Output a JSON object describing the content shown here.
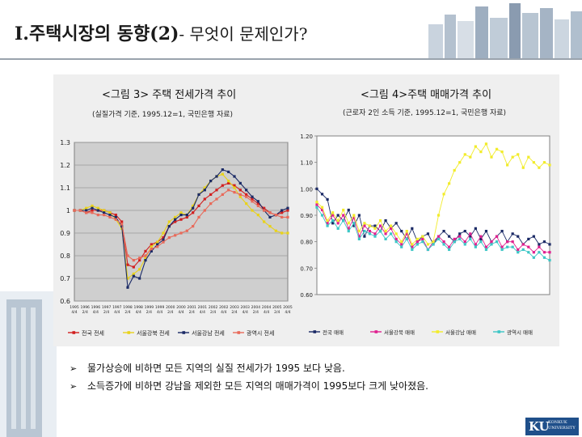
{
  "slide": {
    "title_main": "I.주택시장의 동향(2)",
    "title_rest": "- 무엇이 문제인가?",
    "bullets": [
      "물가상승에 비하면 모든 지역의 실질 전세가가 1995 보다 낮음.",
      "소득증가에 비하면 강남을 제외한 모든 지역의 매매가격이 1995보다 크게 낮아졌음."
    ],
    "logo_text": "KU",
    "logo_sub": "KONKUK UNIVERSITY"
  },
  "chart_data": [
    {
      "type": "line",
      "title": "<그림 3> 주택 전세가격 추이",
      "subtitle": "(실질가격 기준, 1995.12=1, 국민은행 자료)",
      "ylim": [
        0.6,
        1.3
      ],
      "yticks": [
        "1.3",
        "1.2",
        "1.1",
        "1",
        "0.9",
        "0.8",
        "0.7",
        "0.6"
      ],
      "xticks": [
        "1995 4/4",
        "1996 2/4",
        "1996 4/4",
        "1997 2/4",
        "1997 4/4",
        "1998 2/4",
        "1998 4/4",
        "1999 2/4",
        "1999 4/4",
        "2000 2/4",
        "2000 4/4",
        "2001 2/4",
        "2001 4/4",
        "2002 2/4",
        "2002 4/4",
        "2003 2/4",
        "2003 4/4",
        "2004 2/4",
        "2004 4/4",
        "2005 2/4",
        "2005 4/4"
      ],
      "grid": true,
      "legend_position": "bottom",
      "series": [
        {
          "name": "전국 전세",
          "color": "#d11f1f",
          "values": [
            1.0,
            1.0,
            0.99,
            1.0,
            1.0,
            1.0,
            0.99,
            0.98,
            0.95,
            0.76,
            0.75,
            0.78,
            0.82,
            0.85,
            0.86,
            0.88,
            0.93,
            0.95,
            0.96,
            0.97,
            0.99,
            1.02,
            1.05,
            1.07,
            1.09,
            1.11,
            1.12,
            1.11,
            1.09,
            1.07,
            1.05,
            1.03,
            1.01,
            0.99,
            0.98,
            0.99,
            1.0
          ]
        },
        {
          "name": "서울강북 전세",
          "color": "#e8d21a",
          "values": [
            1.0,
            1.0,
            1.01,
            1.02,
            1.01,
            1.0,
            0.99,
            0.96,
            0.92,
            0.7,
            0.72,
            0.74,
            0.79,
            0.84,
            0.86,
            0.9,
            0.95,
            0.97,
            0.99,
            0.98,
            1.02,
            1.07,
            1.1,
            1.13,
            1.15,
            1.16,
            1.13,
            1.1,
            1.06,
            1.03,
            1.0,
            0.98,
            0.95,
            0.93,
            0.91,
            0.9,
            0.9
          ]
        },
        {
          "name": "서울강남 전세",
          "color": "#1b2a66",
          "values": [
            1.0,
            1.0,
            1.0,
            1.01,
            1.0,
            0.99,
            0.98,
            0.97,
            0.93,
            0.66,
            0.71,
            0.7,
            0.78,
            0.82,
            0.85,
            0.87,
            0.93,
            0.96,
            0.98,
            0.98,
            1.01,
            1.07,
            1.09,
            1.13,
            1.15,
            1.18,
            1.17,
            1.15,
            1.12,
            1.09,
            1.06,
            1.04,
            1.0,
            0.97,
            0.98,
            1.0,
            1.01
          ]
        },
        {
          "name": "광역시 전세",
          "color": "#e86a5a",
          "values": [
            1.0,
            1.0,
            0.99,
            0.99,
            0.98,
            0.98,
            0.97,
            0.96,
            0.94,
            0.8,
            0.78,
            0.79,
            0.8,
            0.83,
            0.84,
            0.86,
            0.88,
            0.89,
            0.9,
            0.91,
            0.93,
            0.97,
            1.0,
            1.03,
            1.05,
            1.07,
            1.09,
            1.08,
            1.07,
            1.06,
            1.04,
            1.02,
            1.0,
            0.99,
            0.98,
            0.97,
            0.97
          ]
        }
      ]
    },
    {
      "type": "line",
      "title": "<그림 4>주택 매매가격 추이",
      "subtitle": "(근로자 2인 소득 기준, 1995.12=1, 국민은행 자료)",
      "yticks": [
        "1.20",
        "1.10",
        "1.00",
        "0.90",
        "0.80",
        "0.70",
        "0.60"
      ],
      "ylim": [
        0.6,
        1.2
      ],
      "grid": false,
      "legend_position": "bottom",
      "series": [
        {
          "name": "전국 매매",
          "color": "#1b2a66",
          "values": [
            1.0,
            0.98,
            0.96,
            0.87,
            0.9,
            0.88,
            0.92,
            0.86,
            0.9,
            0.82,
            0.86,
            0.86,
            0.84,
            0.88,
            0.85,
            0.87,
            0.84,
            0.81,
            0.85,
            0.8,
            0.82,
            0.83,
            0.79,
            0.82,
            0.84,
            0.82,
            0.8,
            0.83,
            0.84,
            0.82,
            0.85,
            0.81,
            0.84,
            0.8,
            0.82,
            0.84,
            0.8,
            0.83,
            0.82,
            0.79,
            0.81,
            0.82,
            0.79,
            0.8,
            0.79
          ]
        },
        {
          "name": "서울강북 매매",
          "color": "#e0208f",
          "values": [
            0.94,
            0.92,
            0.87,
            0.9,
            0.87,
            0.9,
            0.85,
            0.89,
            0.82,
            0.86,
            0.84,
            0.83,
            0.86,
            0.83,
            0.85,
            0.81,
            0.79,
            0.83,
            0.78,
            0.8,
            0.81,
            0.77,
            0.8,
            0.82,
            0.8,
            0.78,
            0.81,
            0.82,
            0.8,
            0.83,
            0.79,
            0.82,
            0.78,
            0.8,
            0.82,
            0.78,
            0.8,
            0.8,
            0.77,
            0.79,
            0.78,
            0.76,
            0.78,
            0.76,
            0.76
          ]
        },
        {
          "name": "서울강남 매매",
          "color": "#f2ec2a",
          "values": [
            0.95,
            0.93,
            0.88,
            0.91,
            0.88,
            0.92,
            0.87,
            0.9,
            0.84,
            0.87,
            0.86,
            0.85,
            0.88,
            0.84,
            0.86,
            0.83,
            0.8,
            0.84,
            0.79,
            0.81,
            0.82,
            0.79,
            0.8,
            0.9,
            0.98,
            1.02,
            1.07,
            1.1,
            1.13,
            1.12,
            1.16,
            1.14,
            1.17,
            1.12,
            1.15,
            1.14,
            1.09,
            1.12,
            1.13,
            1.08,
            1.12,
            1.1,
            1.08,
            1.1,
            1.09
          ]
        },
        {
          "name": "광역시 매매",
          "color": "#3cc6c6",
          "values": [
            0.93,
            0.9,
            0.86,
            0.88,
            0.85,
            0.88,
            0.84,
            0.87,
            0.81,
            0.84,
            0.83,
            0.82,
            0.84,
            0.81,
            0.83,
            0.8,
            0.78,
            0.81,
            0.77,
            0.79,
            0.8,
            0.77,
            0.79,
            0.81,
            0.79,
            0.77,
            0.8,
            0.81,
            0.79,
            0.81,
            0.78,
            0.8,
            0.77,
            0.79,
            0.8,
            0.77,
            0.78,
            0.78,
            0.76,
            0.77,
            0.76,
            0.74,
            0.76,
            0.74,
            0.73
          ]
        }
      ]
    }
  ]
}
